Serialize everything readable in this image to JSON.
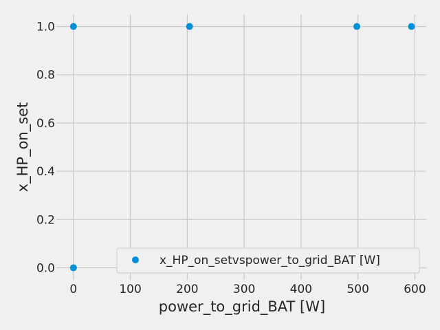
{
  "chart_data": {
    "type": "scatter",
    "xlabel": "power_to_grid_BAT [W]",
    "ylabel": "x_HP_on_set",
    "xlim": [
      -30,
      620
    ],
    "ylim": [
      -0.05,
      1.05
    ],
    "xticks": [
      0,
      100,
      200,
      300,
      400,
      500,
      600
    ],
    "yticks": [
      0.0,
      0.2,
      0.4,
      0.6,
      0.8,
      1.0
    ],
    "xtick_labels": [
      "0",
      "100",
      "200",
      "300",
      "400",
      "500",
      "600"
    ],
    "ytick_labels": [
      "0.0",
      "0.2",
      "0.4",
      "0.6",
      "0.8",
      "1.0"
    ],
    "grid": true,
    "legend_position": "lower-right",
    "series": [
      {
        "name": "x_HP_on_setvspower_to_grid_BAT [W]",
        "color": "#008fd5",
        "points": [
          {
            "x": 0,
            "y": 1.0
          },
          {
            "x": 0,
            "y": 0.0
          },
          {
            "x": 204,
            "y": 1.0
          },
          {
            "x": 498,
            "y": 1.0
          },
          {
            "x": 594,
            "y": 1.0
          }
        ]
      }
    ]
  }
}
